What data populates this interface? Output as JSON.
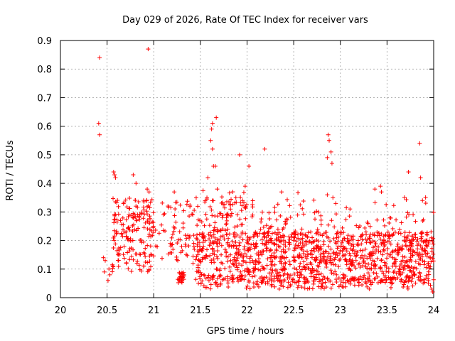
{
  "chart_data": {
    "type": "scatter",
    "title": "Day 029 of 2026, Rate Of TEC Index for receiver vars",
    "xlabel": "GPS time / hours",
    "ylabel": "ROTI / TECUs",
    "xlim": [
      20,
      24
    ],
    "ylim": [
      0,
      0.9
    ],
    "xticks": [
      20,
      20.5,
      21,
      21.5,
      22,
      22.5,
      23,
      23.5,
      24
    ],
    "xtick_labels": [
      "20",
      "20.5",
      "21",
      "21.5",
      "22",
      "22.5",
      "23",
      "23.5",
      "24"
    ],
    "yticks": [
      0,
      0.1,
      0.2,
      0.3,
      0.4,
      0.5,
      0.6,
      0.7,
      0.8,
      0.9
    ],
    "ytick_labels": [
      "0",
      "0.1",
      "0.2",
      "0.3",
      "0.4",
      "0.5",
      "0.6",
      "0.7",
      "0.8",
      "0.9"
    ],
    "grid": true,
    "marker": "+",
    "color": "#ff0000",
    "series": [
      {
        "name": "ROTI",
        "outliers": [
          [
            20.42,
            0.84
          ],
          [
            20.94,
            0.87
          ],
          [
            20.41,
            0.61
          ],
          [
            20.42,
            0.57
          ],
          [
            21.63,
            0.61
          ],
          [
            21.62,
            0.59
          ],
          [
            21.61,
            0.55
          ],
          [
            21.67,
            0.63
          ],
          [
            21.64,
            0.46
          ],
          [
            21.66,
            0.46
          ],
          [
            21.63,
            0.52
          ],
          [
            21.58,
            0.42
          ],
          [
            21.92,
            0.5
          ],
          [
            22.19,
            0.52
          ],
          [
            22.02,
            0.46
          ],
          [
            21.98,
            0.39
          ],
          [
            22.87,
            0.57
          ],
          [
            22.88,
            0.55
          ],
          [
            22.86,
            0.49
          ],
          [
            22.9,
            0.51
          ],
          [
            22.91,
            0.47
          ],
          [
            23.85,
            0.54
          ],
          [
            23.73,
            0.44
          ],
          [
            23.86,
            0.42
          ],
          [
            20.57,
            0.44
          ],
          [
            20.58,
            0.43
          ],
          [
            20.59,
            0.42
          ],
          [
            20.78,
            0.43
          ],
          [
            20.81,
            0.4
          ],
          [
            20.46,
            0.14
          ],
          [
            20.48,
            0.13
          ],
          [
            20.47,
            0.09
          ],
          [
            20.51,
            0.06
          ],
          [
            20.52,
            0.1
          ],
          [
            20.53,
            0.08
          ],
          [
            20.93,
            0.38
          ],
          [
            20.95,
            0.37
          ],
          [
            21.22,
            0.37
          ],
          [
            21.57,
            0.35
          ],
          [
            21.88,
            0.35
          ],
          [
            22.86,
            0.36
          ],
          [
            23.43,
            0.39
          ],
          [
            23.44,
            0.37
          ],
          [
            22.37,
            0.37
          ],
          [
            23.37,
            0.38
          ],
          [
            23.88,
            0.34
          ],
          [
            23.98,
            0.03
          ],
          [
            23.99,
            0.02
          ],
          [
            22.92,
            0.35
          ],
          [
            21.68,
            0.38
          ]
        ]
      }
    ]
  }
}
